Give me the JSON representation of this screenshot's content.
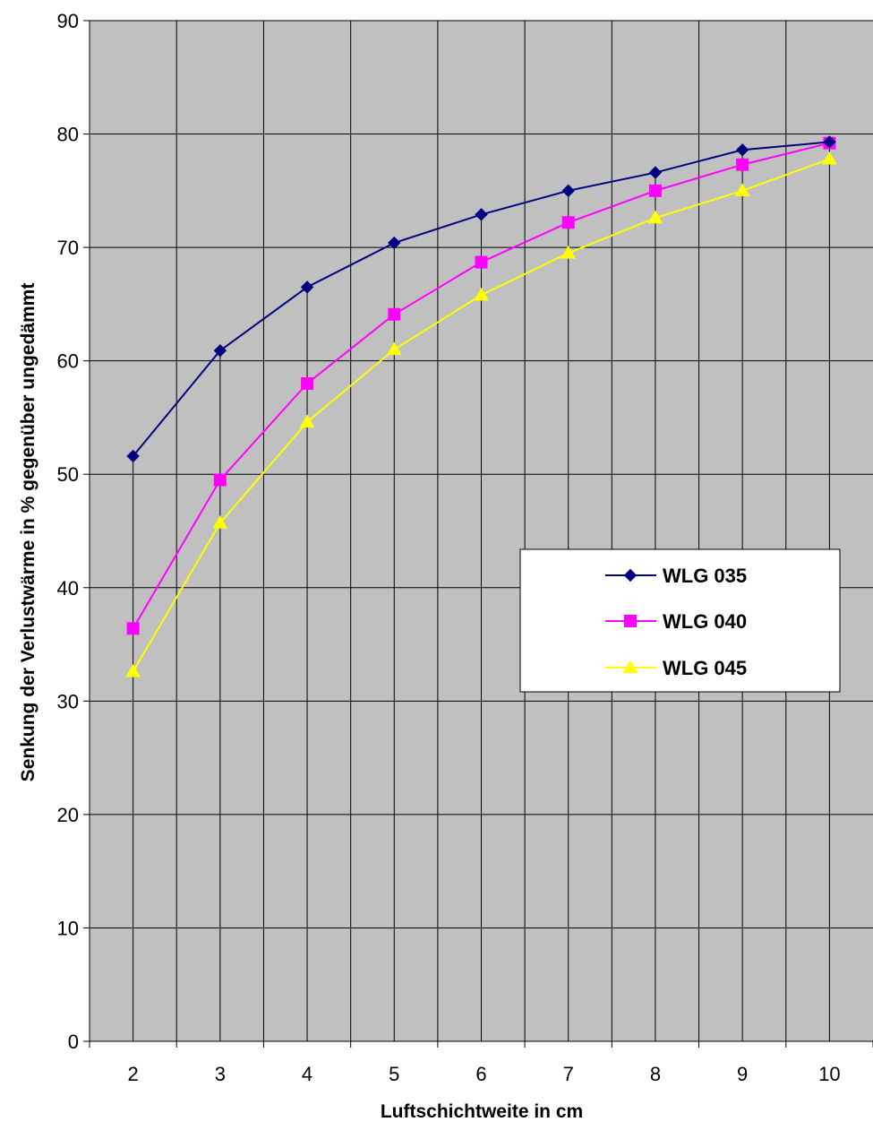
{
  "chart_data": {
    "type": "line",
    "title": "",
    "xlabel": "Luftschichtweite  in cm",
    "ylabel": "Senkung der Verlustwärme in % gegenüber ungedämmt",
    "x": [
      2,
      3,
      4,
      5,
      6,
      7,
      8,
      9,
      10
    ],
    "xlim": [
      1.5,
      10.5
    ],
    "ylim": [
      0,
      90
    ],
    "y_ticks": [
      0,
      10,
      20,
      30,
      40,
      50,
      60,
      70,
      80,
      90
    ],
    "x_ticks": [
      2,
      3,
      4,
      5,
      6,
      7,
      8,
      9,
      10
    ],
    "grid": true,
    "vertical_drop_lines": true,
    "plot_background": "#c0c0c0",
    "legend_position": "right",
    "series": [
      {
        "name": "WLG 035",
        "color": "#000080",
        "marker": "diamond",
        "values": [
          51.6,
          60.9,
          66.5,
          70.4,
          72.9,
          75.0,
          76.6,
          78.6,
          79.3
        ]
      },
      {
        "name": "WLG 040",
        "color": "#ff00ff",
        "marker": "square",
        "values": [
          36.4,
          49.5,
          58.0,
          64.1,
          68.7,
          72.2,
          75.0,
          77.3,
          79.2
        ]
      },
      {
        "name": "WLG 045",
        "color": "#ffff00",
        "marker": "triangle",
        "values": [
          32.6,
          45.7,
          54.6,
          61.0,
          65.8,
          69.5,
          72.6,
          75.0,
          77.8
        ]
      }
    ]
  }
}
